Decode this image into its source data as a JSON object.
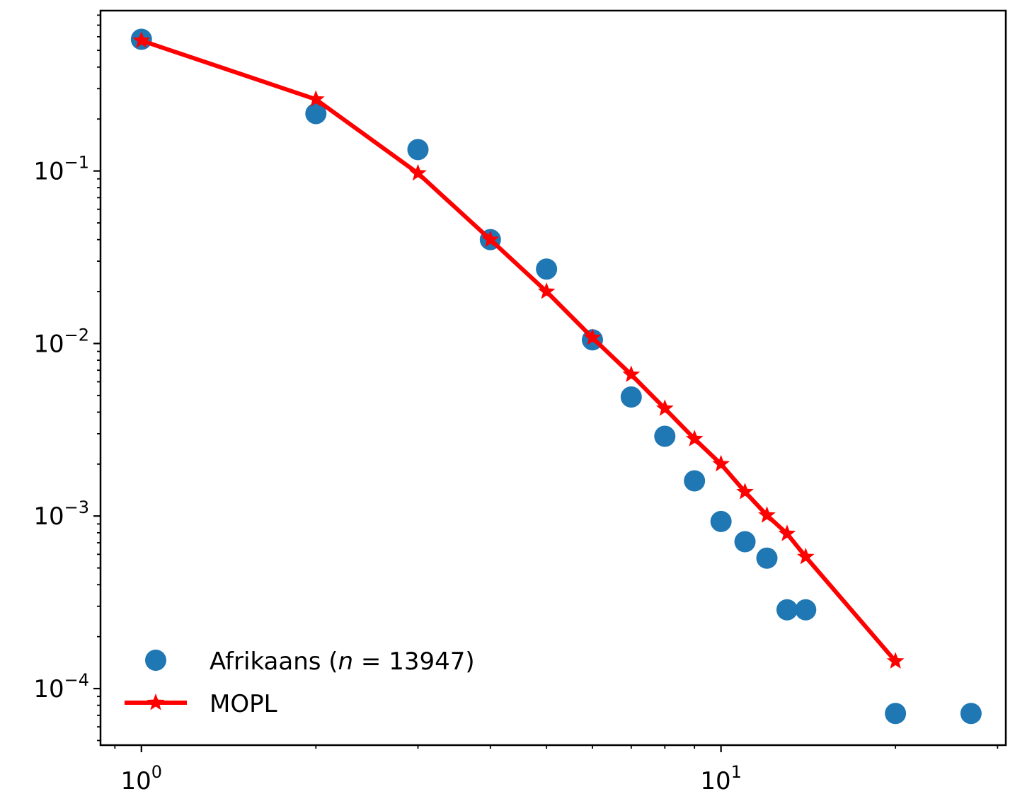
{
  "chart_data": {
    "type": "scatter",
    "xscale": "log",
    "yscale": "log",
    "xlim": [
      0.85,
      31
    ],
    "ylim": [
      4.7e-05,
      0.85
    ],
    "grid": false,
    "legend_position": "lower-left",
    "xticks": [
      {
        "base": "10",
        "exp": "0",
        "value": 1
      },
      {
        "base": "10",
        "exp": "1",
        "value": 10
      }
    ],
    "yticks": [
      {
        "base": "10",
        "exp": "−1",
        "value": 0.1
      },
      {
        "base": "10",
        "exp": "−2",
        "value": 0.01
      },
      {
        "base": "10",
        "exp": "−3",
        "value": 0.001
      },
      {
        "base": "10",
        "exp": "−4",
        "value": 0.0001
      }
    ],
    "series": [
      {
        "name": "Afrikaans (n = 13947)",
        "name_parts": {
          "prefix": "Afrikaans (",
          "var": "n",
          "suffix": " = 13947)"
        },
        "kind": "scatter",
        "color": "#1f77b4",
        "x": [
          1,
          2,
          3,
          4,
          5,
          6,
          7,
          8,
          9,
          10,
          11,
          12,
          13,
          14,
          20,
          27
        ],
        "y": [
          0.58,
          0.215,
          0.133,
          0.04,
          0.027,
          0.0105,
          0.0049,
          0.0029,
          0.0016,
          0.00093,
          0.00071,
          0.00057,
          0.000286,
          0.000286,
          7.17e-05,
          7.17e-05
        ]
      },
      {
        "name": "MOPL",
        "kind": "line",
        "marker": "star",
        "color": "#ff0000",
        "x": [
          1,
          2,
          3,
          4,
          5,
          6,
          7,
          8,
          9,
          10,
          11,
          12,
          13,
          14,
          20
        ],
        "y": [
          0.57,
          0.26,
          0.097,
          0.04,
          0.02,
          0.0108,
          0.0066,
          0.0042,
          0.0028,
          0.002,
          0.00138,
          0.00101,
          0.00079,
          0.00058,
          0.000144
        ]
      }
    ]
  }
}
